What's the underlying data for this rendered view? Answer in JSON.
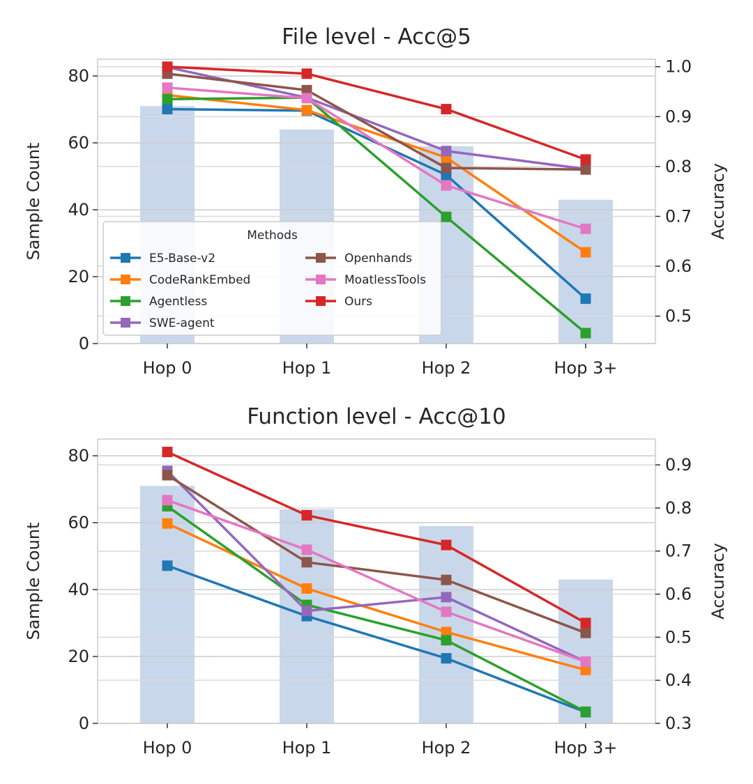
{
  "chart_data": [
    {
      "type": "bar+line",
      "title": "File level - Acc@5",
      "ylabel": "Sample Count",
      "y2label": "Accuracy",
      "categories": [
        "Hop 0",
        "Hop 1",
        "Hop 2",
        "Hop 3+"
      ],
      "ylim": [
        0,
        85
      ],
      "yticks": [
        "0",
        "20",
        "40",
        "60",
        "80"
      ],
      "y2lim": [
        0.445,
        1.015
      ],
      "y2ticks": [
        "0.5",
        "0.6",
        "0.7",
        "0.8",
        "0.9",
        "1.0"
      ],
      "bar_color": "#c9d7eb",
      "bars": [
        71,
        64,
        59,
        43
      ],
      "series": [
        {
          "name": "E5-Base-v2",
          "color": "#1f77b4",
          "values": [
            0.915,
            0.912,
            0.783,
            0.535
          ]
        },
        {
          "name": "CodeRankEmbed",
          "color": "#ff7f0e",
          "values": [
            0.943,
            0.913,
            0.818,
            0.628
          ]
        },
        {
          "name": "Agentless",
          "color": "#2ca02c",
          "values": [
            0.935,
            0.938,
            0.699,
            0.466
          ]
        },
        {
          "name": "SWE-agent",
          "color": "#9467bd",
          "values": [
            0.999,
            0.938,
            0.831,
            0.795
          ]
        },
        {
          "name": "Openhands",
          "color": "#8c564b",
          "values": [
            0.986,
            0.953,
            0.797,
            0.794
          ]
        },
        {
          "name": "MoatlessTools",
          "color": "#e377c2",
          "values": [
            0.958,
            0.937,
            0.762,
            0.675
          ]
        },
        {
          "name": "Ours",
          "color": "#d62728",
          "values": [
            1.0,
            0.986,
            0.915,
            0.814
          ]
        }
      ],
      "legend": {
        "title": "Methods",
        "placement": "lower-left"
      },
      "grid": true
    },
    {
      "type": "bar+line",
      "title": "Function level - Acc@10",
      "ylabel": "Sample Count",
      "y2label": "Accuracy",
      "categories": [
        "Hop 0",
        "Hop 1",
        "Hop 2",
        "Hop 3+"
      ],
      "ylim": [
        0,
        85
      ],
      "yticks": [
        "0",
        "20",
        "40",
        "60",
        "80"
      ],
      "y2lim": [
        0.3,
        0.96
      ],
      "y2ticks": [
        "0.3",
        "0.4",
        "0.5",
        "0.6",
        "0.7",
        "0.8",
        "0.9"
      ],
      "bar_color": "#c9d7eb",
      "bars": [
        71,
        64,
        59,
        43
      ],
      "series": [
        {
          "name": "E5-Base-v2",
          "color": "#1f77b4",
          "values": [
            0.666,
            0.549,
            0.451,
            0.326
          ]
        },
        {
          "name": "CodeRankEmbed",
          "color": "#ff7f0e",
          "values": [
            0.764,
            0.613,
            0.512,
            0.424
          ]
        },
        {
          "name": "Agentless",
          "color": "#2ca02c",
          "values": [
            0.804,
            0.575,
            0.493,
            0.327
          ]
        },
        {
          "name": "SWE-agent",
          "color": "#9467bd",
          "values": [
            0.886,
            0.561,
            0.593,
            0.443
          ]
        },
        {
          "name": "Openhands",
          "color": "#8c564b",
          "values": [
            0.876,
            0.674,
            0.633,
            0.51
          ]
        },
        {
          "name": "MoatlessTools",
          "color": "#e377c2",
          "values": [
            0.818,
            0.703,
            0.559,
            0.443
          ]
        },
        {
          "name": "Ours",
          "color": "#d62728",
          "values": [
            0.93,
            0.783,
            0.714,
            0.533
          ]
        }
      ],
      "grid": true
    }
  ]
}
